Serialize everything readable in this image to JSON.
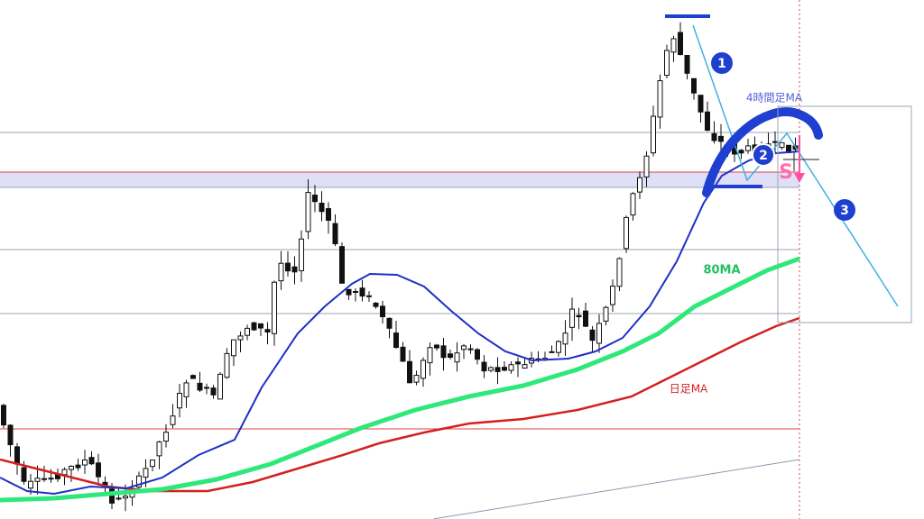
{
  "annotations": {
    "ma_4h": "4時間足MA",
    "ma_80": "80MA",
    "ma_daily": "日足MA",
    "signal": "S"
  },
  "markers": [
    "1",
    "2",
    "3"
  ]
}
